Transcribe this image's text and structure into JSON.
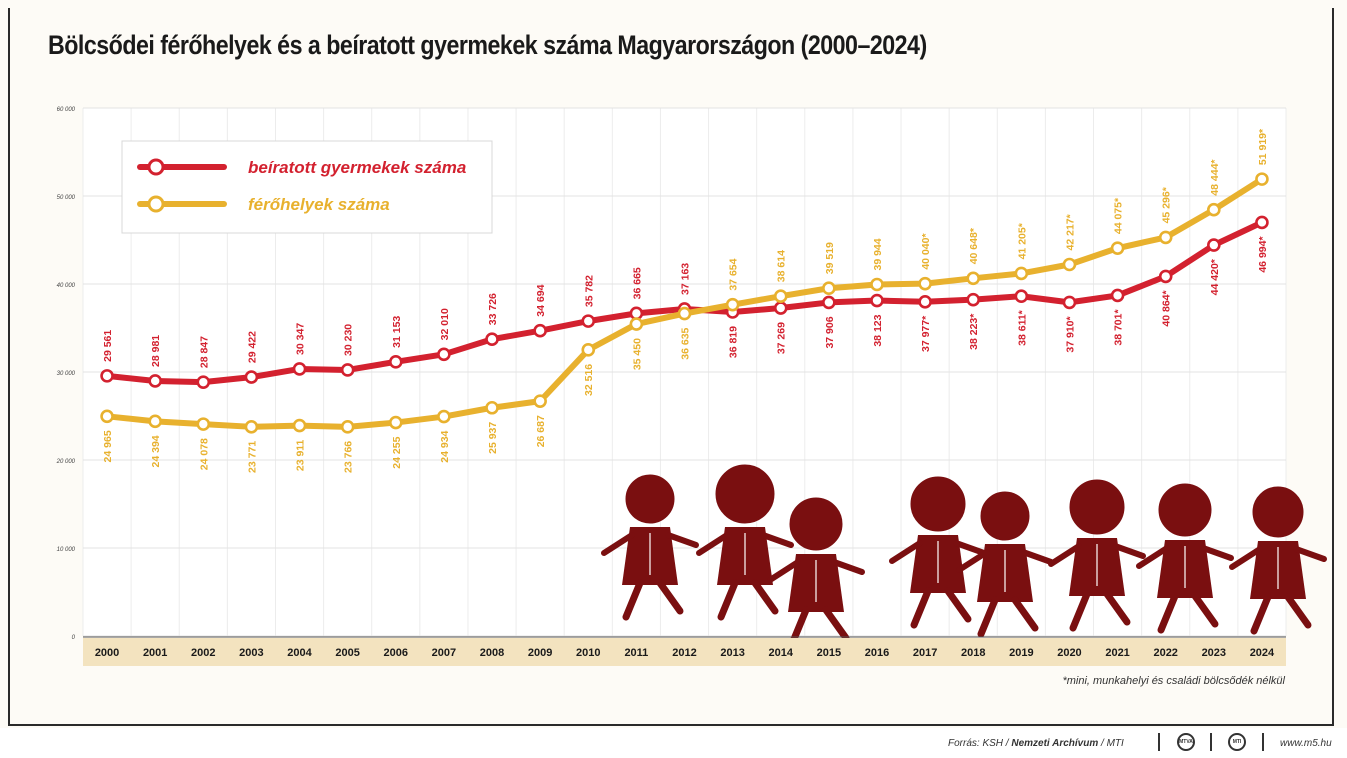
{
  "title": "Bölcsődei férőhelyek és a beíratott gyermekek száma Magyarországon (2000–2024)",
  "footnote": "*mini, munkahelyi és családi bölcsődék nélkül",
  "source": {
    "prefix": "Forrás: KSH / ",
    "archive": "Nemzeti Archívum",
    "mti": " / MTI",
    "logo1": "MTVA",
    "logo2": "MTI",
    "website": "www.m5.hu"
  },
  "colors": {
    "enrolled": "#d3212f",
    "places": "#e8b12e",
    "figures": "#7a0f10"
  },
  "chart_data": {
    "type": "line",
    "x": [
      "2000",
      "2001",
      "2002",
      "2003",
      "2004",
      "2005",
      "2006",
      "2007",
      "2008",
      "2009",
      "2010",
      "2011",
      "2012",
      "2013",
      "2014",
      "2015",
      "2016",
      "2017",
      "2018",
      "2019",
      "2020",
      "2021",
      "2022",
      "2023",
      "2024"
    ],
    "ylim": [
      0,
      60000
    ],
    "yticks": [
      "0",
      "10 000",
      "20 000",
      "30 000",
      "40 000",
      "50 000",
      "60 000"
    ],
    "grid": true,
    "legend_position": "top-left",
    "series": [
      {
        "name": "beíratott gyermekek száma",
        "color": "#d3212f",
        "values": [
          29561,
          28981,
          28847,
          29422,
          30347,
          30230,
          31153,
          32010,
          33726,
          34694,
          35782,
          36665,
          37163,
          36819,
          37269,
          37906,
          38123,
          37977,
          38223,
          38611,
          37910,
          38701,
          40864,
          44420,
          46994
        ],
        "labels": [
          "29 561",
          "28 981",
          "28 847",
          "29 422",
          "30 347",
          "30 230",
          "31 153",
          "32 010",
          "33 726",
          "34 694",
          "35 782",
          "36 665",
          "37 163",
          "36 819",
          "37 269",
          "37 906",
          "38 123",
          "37 977*",
          "38 223*",
          "38 611*",
          "37 910*",
          "38 701*",
          "40 864*",
          "44 420*",
          "46 994*"
        ]
      },
      {
        "name": "férőhelyek száma",
        "color": "#e8b12e",
        "values": [
          24965,
          24394,
          24078,
          23771,
          23911,
          23766,
          24255,
          24934,
          25937,
          26687,
          32516,
          35450,
          36635,
          37654,
          38614,
          39519,
          39944,
          40040,
          40648,
          41205,
          42217,
          44075,
          45296,
          48444,
          51919
        ],
        "labels": [
          "24 965",
          "24 394",
          "24 078",
          "23 771",
          "23 911",
          "23 766",
          "24 255",
          "24 934",
          "25 937",
          "26 687",
          "32 516",
          "35 450",
          "36 635",
          "37 654",
          "38 614",
          "39 519",
          "39 944",
          "40 040*",
          "40 648*",
          "41 205*",
          "42 217*",
          "44 075*",
          "45 296*",
          "48 444*",
          "51 919*"
        ]
      }
    ]
  }
}
